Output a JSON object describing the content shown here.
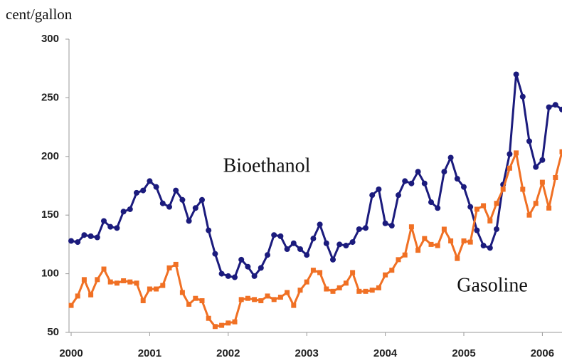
{
  "chart_data": {
    "type": "line",
    "y_label": "cent/gallon",
    "categories": [
      "2000",
      null,
      null,
      null,
      null,
      null,
      null,
      null,
      null,
      null,
      null,
      null,
      "2001",
      null,
      null,
      null,
      null,
      null,
      null,
      null,
      null,
      null,
      null,
      null,
      "2002",
      null,
      null,
      null,
      null,
      null,
      null,
      null,
      null,
      null,
      null,
      null,
      "2003",
      null,
      null,
      null,
      null,
      null,
      null,
      null,
      null,
      null,
      null,
      null,
      "2004",
      null,
      null,
      null,
      null,
      null,
      null,
      null,
      null,
      null,
      null,
      null,
      "2005",
      null,
      null,
      null,
      null,
      null,
      null,
      null,
      null,
      null,
      null,
      null,
      "2006",
      null,
      null,
      null
    ],
    "series": [
      {
        "name": "Bioethanol",
        "color": "#1b1b7d",
        "marker": "circle",
        "values": [
          128,
          127,
          133,
          132,
          131,
          145,
          140,
          139,
          153,
          155,
          169,
          171,
          179,
          174,
          160,
          157,
          171,
          163,
          145,
          156,
          163,
          137,
          117,
          100,
          98,
          97,
          112,
          106,
          98,
          105,
          116,
          133,
          132,
          121,
          126,
          121,
          116,
          130,
          142,
          126,
          112,
          125,
          124,
          127,
          138,
          139,
          167,
          172,
          143,
          141,
          167,
          179,
          177,
          187,
          177,
          161,
          156,
          187,
          199,
          181,
          174,
          157,
          137,
          124,
          122,
          138,
          176,
          202,
          270,
          251,
          213,
          191,
          197,
          242,
          244,
          240
        ]
      },
      {
        "name": "Gasoline",
        "color": "#f07024",
        "marker": "square",
        "values": [
          73,
          81,
          95,
          82,
          95,
          104,
          93,
          92,
          94,
          93,
          92,
          77,
          87,
          87,
          90,
          105,
          108,
          84,
          74,
          79,
          77,
          62,
          55,
          56,
          58,
          59,
          78,
          79,
          78,
          77,
          81,
          78,
          80,
          84,
          73,
          86,
          93,
          103,
          101,
          87,
          85,
          88,
          92,
          101,
          85,
          85,
          86,
          88,
          99,
          103,
          112,
          116,
          140,
          120,
          130,
          125,
          124,
          138,
          128,
          113,
          128,
          127,
          155,
          158,
          145,
          160,
          172,
          190,
          203,
          172,
          150,
          160,
          178,
          156,
          182,
          204
        ]
      }
    ],
    "ylim": [
      50,
      300
    ],
    "yticks": [
      50,
      100,
      150,
      200,
      250,
      300
    ],
    "grid": false
  }
}
